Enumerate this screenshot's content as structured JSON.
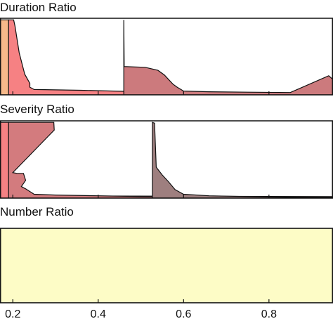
{
  "chart_data": {
    "type": "area",
    "title": "",
    "xlabel": "",
    "ylabel": "",
    "xlim": [
      0.17,
      0.95
    ],
    "ylim": [
      0,
      1
    ],
    "x_ticks": [
      "0.2",
      "0.4",
      "0.6",
      "0.8"
    ],
    "x_tick_values": [
      0.2,
      0.4,
      0.6,
      0.8
    ],
    "grid": false,
    "legend": "none",
    "panels": [
      {
        "title": "Duration Ratio",
        "layers": [
          {
            "color": "#f7b98a",
            "x": [
              0.17,
              0.19,
              0.191,
              0.95
            ],
            "y": [
              0.98,
              0.98,
              0.02,
              0.0
            ]
          },
          {
            "color": "#f68183",
            "x": [
              0.19,
              0.202,
              0.205,
              0.215,
              0.228,
              0.24,
              0.24,
              0.25,
              0.36,
              0.5,
              0.7,
              0.95
            ],
            "y": [
              0.98,
              0.98,
              0.9,
              0.55,
              0.27,
              0.15,
              0.1,
              0.07,
              0.06,
              0.04,
              0.02,
              0.01
            ]
          },
          {
            "color": "#cc7a7d",
            "x": [
              0.46,
              0.461,
              0.51,
              0.54,
              0.555,
              0.565,
              0.575,
              0.585,
              0.6,
              0.66,
              0.75,
              0.85,
              0.94,
              0.95
            ],
            "y": [
              0.98,
              0.37,
              0.36,
              0.32,
              0.26,
              0.2,
              0.14,
              0.1,
              0.05,
              0.04,
              0.035,
              0.03,
              0.25,
              0.2
            ]
          }
        ]
      },
      {
        "title": "Severity Ratio",
        "layers": [
          {
            "color": "#f68183",
            "x": [
              0.17,
              0.19,
              0.191,
              0.95
            ],
            "y": [
              0.98,
              0.98,
              0.03,
              0.02
            ]
          },
          {
            "color": "#d37b7e",
            "x": [
              0.19,
              0.296,
              0.297,
              0.2,
              0.21,
              0.225,
              0.23,
              0.22,
              0.23,
              0.25,
              0.3,
              0.4,
              0.5,
              0.95
            ],
            "y": [
              0.98,
              0.98,
              0.88,
              0.33,
              0.32,
              0.32,
              0.23,
              0.15,
              0.12,
              0.05,
              0.04,
              0.03,
              0.02,
              0.01
            ]
          },
          {
            "color": "#9e7f7f",
            "x": [
              0.527,
              0.532,
              0.536,
              0.55,
              0.565,
              0.58,
              0.6,
              0.66,
              0.75,
              0.85,
              0.95
            ],
            "y": [
              0.98,
              0.97,
              0.4,
              0.3,
              0.21,
              0.11,
              0.05,
              0.03,
              0.02,
              0.01,
              0.01
            ]
          }
        ]
      },
      {
        "title": "Number Ratio",
        "layers": [
          {
            "color": "#fdfcc6",
            "x": [
              0.17,
              0.95
            ],
            "y": [
              1.0,
              1.0
            ]
          }
        ]
      }
    ]
  }
}
